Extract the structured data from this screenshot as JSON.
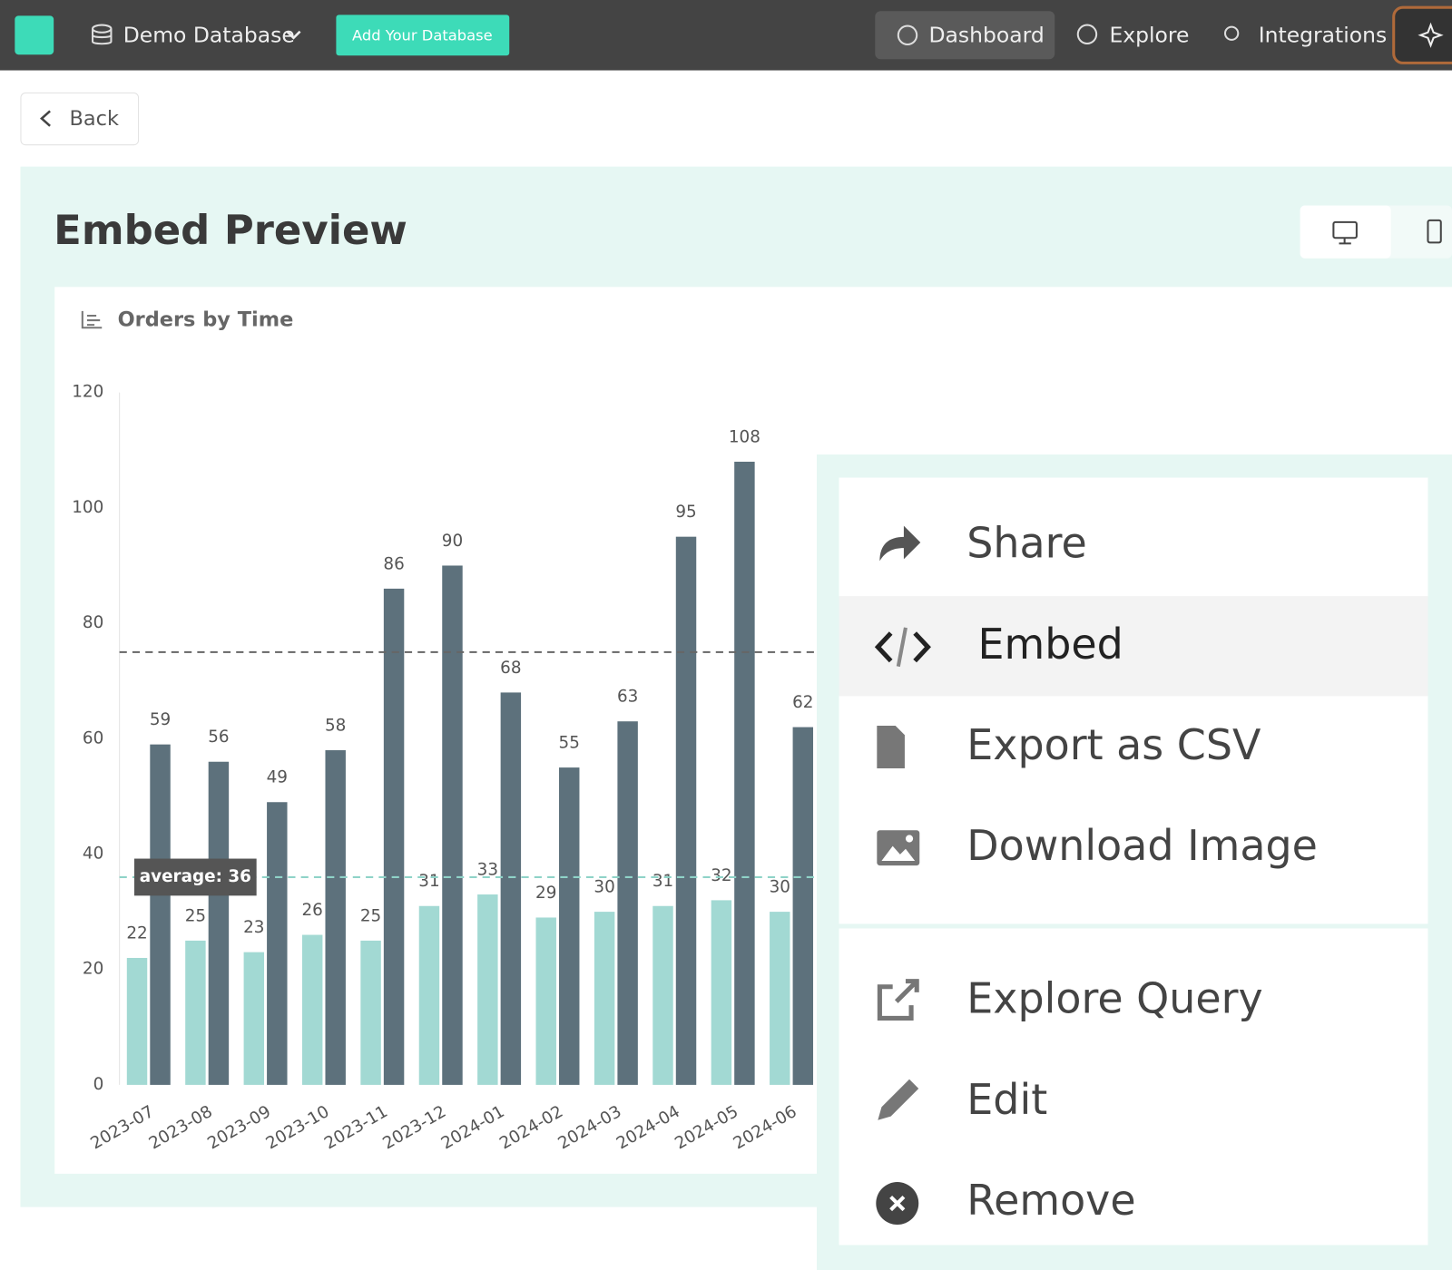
{
  "header": {
    "database": "Demo Database",
    "add_button": "Add Your Database",
    "nav": [
      "Dashboard",
      "Explore",
      "Integrations"
    ]
  },
  "back": "Back",
  "page_title": "Embed Preview",
  "chart_data": {
    "type": "bar",
    "title": "Orders by Time",
    "categories": [
      "2023-07",
      "2023-08",
      "2023-09",
      "2023-10",
      "2023-11",
      "2023-12",
      "2024-01",
      "2024-02",
      "2024-03",
      "2024-04",
      "2024-05",
      "2024-06"
    ],
    "series": [
      {
        "color": "#a2d9d3",
        "values": [
          22,
          25,
          23,
          26,
          25,
          31,
          33,
          29,
          30,
          31,
          32,
          30
        ]
      },
      {
        "color": "#5d717c",
        "values": [
          59,
          56,
          49,
          58,
          86,
          90,
          68,
          55,
          63,
          95,
          108,
          62
        ]
      }
    ],
    "ylim": [
      0,
      120
    ],
    "yticks": [
      0,
      20,
      40,
      60,
      80,
      100,
      120
    ],
    "reference_lines": [
      {
        "value": 75,
        "color": "#666666"
      },
      {
        "value": 36,
        "label": "average: 36",
        "color": "#8fd3c8"
      }
    ]
  },
  "menu": [
    "Share",
    "Embed",
    "Export as CSV",
    "Download Image",
    "Explore Query",
    "Edit",
    "Remove"
  ]
}
